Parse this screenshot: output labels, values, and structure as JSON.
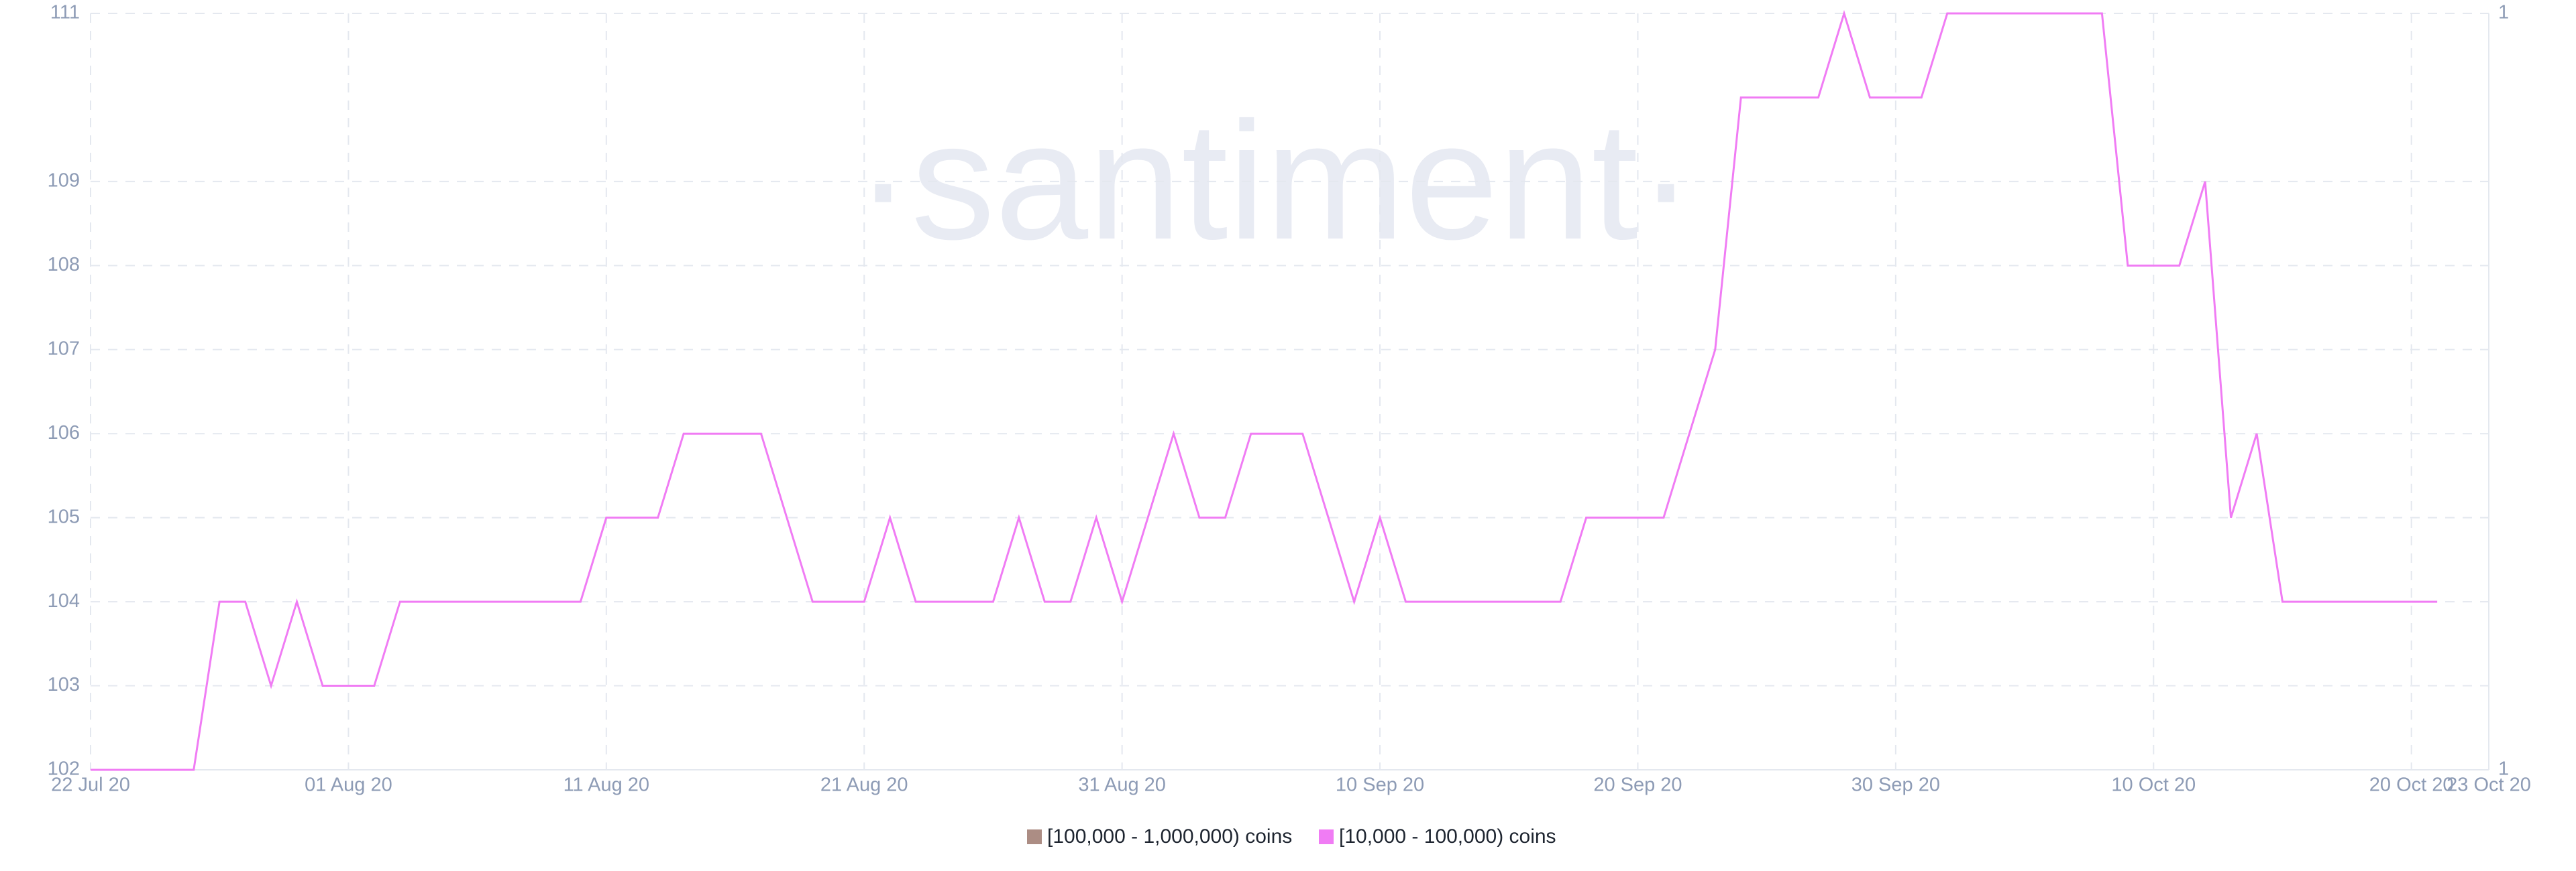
{
  "chart_data": {
    "type": "line",
    "watermark": "·santiment·",
    "x": [
      "2020-07-22",
      "2020-07-23",
      "2020-07-24",
      "2020-07-25",
      "2020-07-26",
      "2020-07-27",
      "2020-07-28",
      "2020-07-29",
      "2020-07-30",
      "2020-07-31",
      "2020-08-01",
      "2020-08-02",
      "2020-08-03",
      "2020-08-04",
      "2020-08-05",
      "2020-08-06",
      "2020-08-07",
      "2020-08-08",
      "2020-08-09",
      "2020-08-10",
      "2020-08-11",
      "2020-08-12",
      "2020-08-13",
      "2020-08-14",
      "2020-08-15",
      "2020-08-16",
      "2020-08-17",
      "2020-08-18",
      "2020-08-19",
      "2020-08-20",
      "2020-08-21",
      "2020-08-22",
      "2020-08-23",
      "2020-08-24",
      "2020-08-25",
      "2020-08-26",
      "2020-08-27",
      "2020-08-28",
      "2020-08-29",
      "2020-08-30",
      "2020-08-31",
      "2020-09-01",
      "2020-09-02",
      "2020-09-03",
      "2020-09-04",
      "2020-09-05",
      "2020-09-06",
      "2020-09-07",
      "2020-09-08",
      "2020-09-09",
      "2020-09-10",
      "2020-09-11",
      "2020-09-12",
      "2020-09-13",
      "2020-09-14",
      "2020-09-15",
      "2020-09-16",
      "2020-09-17",
      "2020-09-18",
      "2020-09-19",
      "2020-09-20",
      "2020-09-21",
      "2020-09-22",
      "2020-09-23",
      "2020-09-24",
      "2020-09-25",
      "2020-09-26",
      "2020-09-27",
      "2020-09-28",
      "2020-09-29",
      "2020-09-30",
      "2020-10-01",
      "2020-10-02",
      "2020-10-03",
      "2020-10-04",
      "2020-10-05",
      "2020-10-06",
      "2020-10-07",
      "2020-10-08",
      "2020-10-09",
      "2020-10-10",
      "2020-10-11",
      "2020-10-12",
      "2020-10-13",
      "2020-10-14",
      "2020-10-15",
      "2020-10-16",
      "2020-10-17",
      "2020-10-18",
      "2020-10-19",
      "2020-10-20",
      "2020-10-21"
    ],
    "series": [
      {
        "name": "[100,000  - 1,000,000) coins",
        "color": "#ac8d84",
        "axis": "y2"
      },
      {
        "name": "[10,000 - 100,000) coins",
        "color": "#f07cf4",
        "values": [
          102,
          102,
          102,
          102,
          102,
          104,
          104,
          103,
          104,
          103,
          103,
          103,
          104,
          104,
          104,
          104,
          104,
          104,
          104,
          104,
          105,
          105,
          105,
          106,
          106,
          106,
          106,
          105,
          104,
          104,
          104,
          105,
          104,
          104,
          104,
          104,
          105,
          104,
          104,
          105,
          104,
          105,
          106,
          105,
          105,
          106,
          106,
          106,
          105,
          104,
          105,
          104,
          104,
          104,
          104,
          104,
          104,
          104,
          105,
          105,
          105,
          105,
          106,
          107,
          110,
          110,
          110,
          110,
          111,
          110,
          110,
          110,
          111,
          111,
          111,
          111,
          111,
          111,
          111,
          108,
          108,
          108,
          109,
          105,
          106,
          104,
          104,
          104,
          104,
          104,
          104,
          104
        ]
      }
    ],
    "xlim": [
      "2020-07-22",
      "2020-10-23"
    ],
    "xticks": [
      {
        "value": "2020-07-22",
        "label": "22 Jul 20"
      },
      {
        "value": "2020-08-01",
        "label": "01 Aug 20"
      },
      {
        "value": "2020-08-11",
        "label": "11 Aug 20"
      },
      {
        "value": "2020-08-21",
        "label": "21 Aug 20"
      },
      {
        "value": "2020-08-31",
        "label": "31 Aug 20"
      },
      {
        "value": "2020-09-10",
        "label": "10 Sep 20"
      },
      {
        "value": "2020-09-20",
        "label": "20 Sep 20"
      },
      {
        "value": "2020-09-30",
        "label": "30 Sep 20"
      },
      {
        "value": "2020-10-10",
        "label": "10 Oct 20"
      },
      {
        "value": "2020-10-20",
        "label": "20 Oct 20"
      },
      {
        "value": "2020-10-23",
        "label": "23 Oct 20"
      }
    ],
    "ylim": [
      102,
      111
    ],
    "yticks": [
      102,
      103,
      104,
      105,
      106,
      107,
      108,
      109,
      111
    ],
    "y2ticks": [
      1,
      1
    ],
    "grid": true
  }
}
